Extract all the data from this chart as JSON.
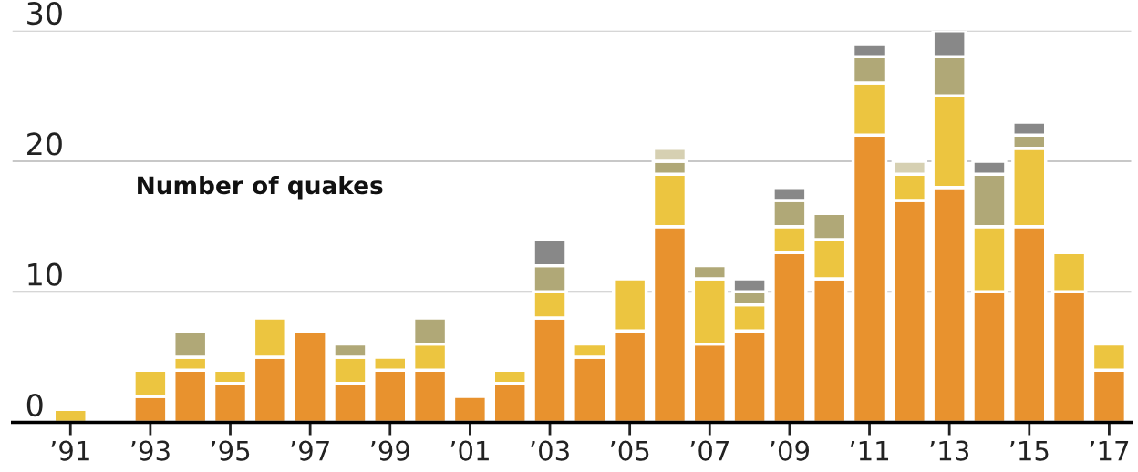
{
  "chart_data": {
    "type": "bar",
    "stacked": true,
    "categories": [
      "’91",
      null,
      "’93",
      null,
      "’95",
      null,
      "’97",
      null,
      "’99",
      null,
      "’01",
      null,
      "’03",
      null,
      "’05",
      null,
      "’07",
      null,
      "’09",
      null,
      "’11",
      null,
      "’13",
      null,
      "’15",
      null,
      "’17"
    ],
    "series": [
      {
        "color": "#e8922e",
        "values": [
          0,
          0,
          2,
          4,
          3,
          5,
          7,
          3,
          4,
          4,
          2,
          3,
          8,
          5,
          7,
          15,
          6,
          7,
          13,
          11,
          22,
          17,
          18,
          10,
          15,
          10,
          4
        ]
      },
      {
        "color": "#ecc540",
        "values": [
          1,
          0,
          2,
          1,
          1,
          3,
          0,
          2,
          1,
          2,
          0,
          1,
          2,
          1,
          4,
          4,
          5,
          2,
          2,
          3,
          4,
          2,
          7,
          5,
          6,
          3,
          2
        ]
      },
      {
        "color": "#b0a877",
        "values": [
          0,
          0,
          0,
          2,
          0,
          0,
          0,
          1,
          0,
          2,
          0,
          0,
          2,
          0,
          0,
          1,
          1,
          1,
          2,
          2,
          2,
          0,
          3,
          4,
          1,
          0,
          0
        ]
      },
      {
        "color": "#d6d0b2",
        "values": [
          0,
          0,
          0,
          0,
          0,
          0,
          0,
          0,
          0,
          0,
          0,
          0,
          0,
          0,
          0,
          1,
          0,
          0,
          0,
          0,
          0,
          1,
          0,
          0,
          0,
          0,
          0
        ]
      },
      {
        "color": "#888888",
        "values": [
          0,
          0,
          0,
          0,
          0,
          0,
          0,
          0,
          0,
          0,
          0,
          0,
          2,
          0,
          0,
          0,
          0,
          1,
          1,
          0,
          1,
          0,
          2,
          1,
          1,
          0,
          0
        ]
      }
    ],
    "ylim": [
      0,
      30
    ],
    "yticks": [
      0,
      10,
      20,
      30
    ],
    "grid": "y",
    "annotations": [
      "Number of quakes"
    ]
  }
}
